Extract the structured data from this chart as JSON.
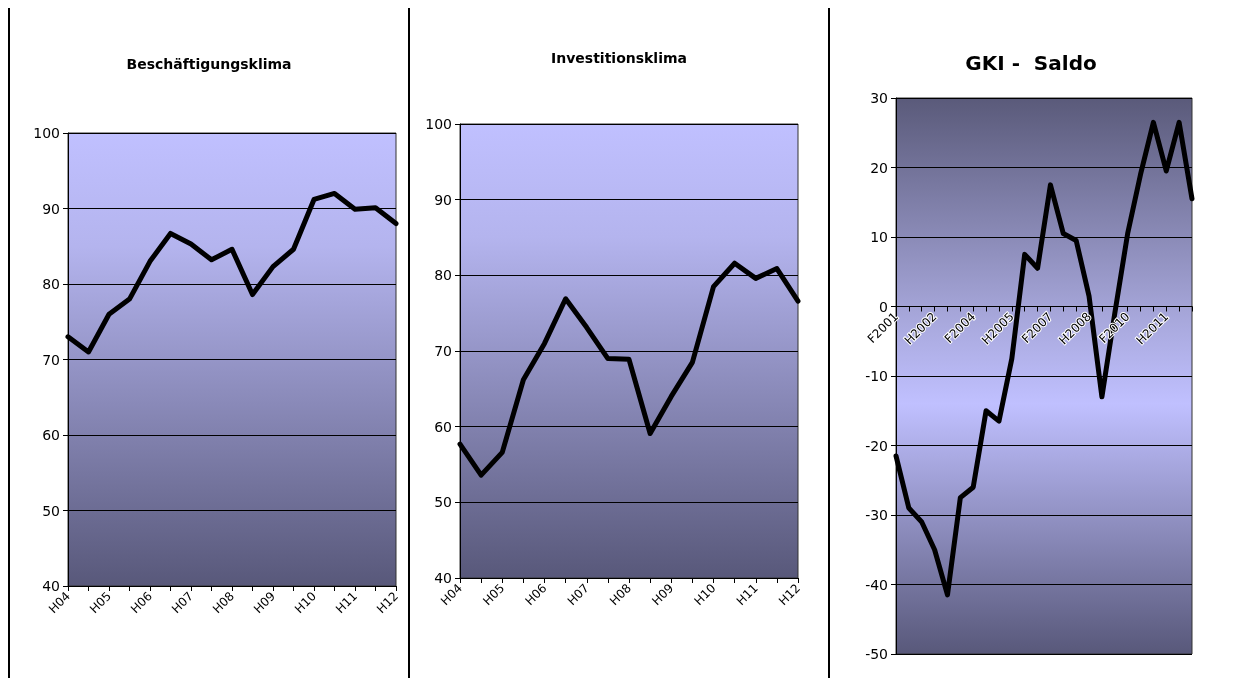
{
  "chart_data": [
    {
      "type": "line",
      "title": "Beschäftigungsklima",
      "categories": [
        "H04",
        null,
        "H05",
        null,
        "H06",
        null,
        "H07",
        null,
        "H08",
        null,
        "H09",
        null,
        "H10",
        null,
        "H11",
        null,
        "H12"
      ],
      "series": [
        {
          "color": "#000000",
          "values": [
            73,
            71,
            76,
            78,
            83,
            86.7,
            85.3,
            83.2,
            84.6,
            78.6,
            82.3,
            84.6,
            91.2,
            92,
            89.9,
            90.1,
            88
          ]
        }
      ],
      "ylim": [
        40,
        100
      ],
      "yticks": [
        40,
        50,
        60,
        70,
        80,
        90,
        100
      ],
      "grid": "y",
      "marker": "none",
      "line_style": "solid"
    },
    {
      "type": "line",
      "title": "Investitionsklima",
      "categories": [
        "H04",
        null,
        "H05",
        null,
        "H06",
        null,
        "H07",
        null,
        "H08",
        null,
        "H09",
        null,
        "H10",
        null,
        "H11",
        null,
        "H12"
      ],
      "series": [
        {
          "color": "#000000",
          "values": [
            57.7,
            53.6,
            56.6,
            66.2,
            71,
            76.9,
            73.1,
            69,
            68.9,
            59.1,
            64,
            68.5,
            78.5,
            81.6,
            79.6,
            80.9,
            76.6
          ]
        }
      ],
      "ylim": [
        40,
        100
      ],
      "yticks": [
        40,
        50,
        60,
        70,
        80,
        90,
        100
      ],
      "grid": "y",
      "marker": "none",
      "line_style": "solid"
    },
    {
      "type": "line",
      "title": "GKI -  Saldo",
      "categories": [
        "F2001",
        null,
        null,
        "H2002",
        null,
        null,
        "F2004",
        null,
        null,
        "H2005",
        null,
        null,
        "F2007",
        null,
        null,
        "H2008",
        null,
        null,
        "F2010",
        null,
        null,
        "H2011",
        null,
        null
      ],
      "series": [
        {
          "color": "#000000",
          "values": [
            -21.5,
            -29,
            -31,
            -35,
            -41.5,
            -27.5,
            -26,
            -15,
            -16.5,
            -7.5,
            7.5,
            5.5,
            17.5,
            10.5,
            9.5,
            1.5,
            -13,
            -1,
            10.5,
            19,
            26.5,
            19.5,
            26.5,
            15.5
          ]
        }
      ],
      "ylim": [
        -50,
        30
      ],
      "yticks": [
        -50,
        -40,
        -30,
        -20,
        -10,
        0,
        10,
        20,
        30
      ],
      "grid": "y",
      "marker": "none",
      "line_style": "solid"
    }
  ]
}
